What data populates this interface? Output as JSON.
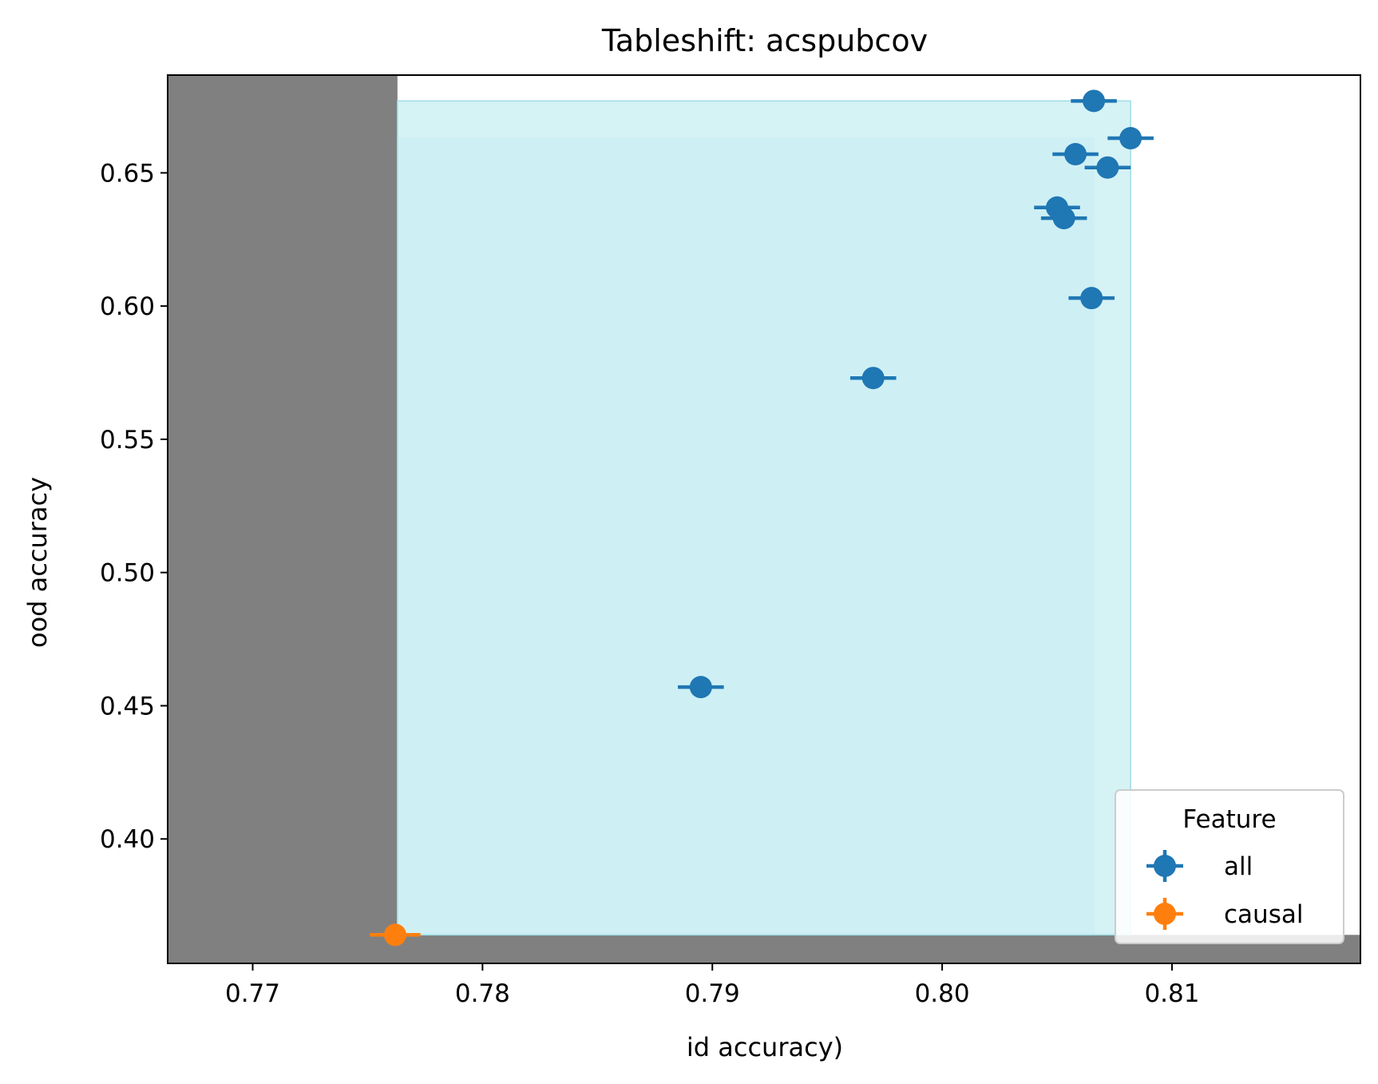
{
  "chart_data": {
    "type": "scatter",
    "title": "Tableshift: acspubcov",
    "xlabel": "id accuracy)",
    "ylabel": "ood accuracy",
    "xlim": [
      0.7663,
      0.8182
    ],
    "ylim": [
      0.3533,
      0.6867
    ],
    "x_ticks": [
      0.77,
      0.78,
      0.79,
      0.8,
      0.81
    ],
    "x_tick_labels": [
      "0.77",
      "0.78",
      "0.79",
      "0.80",
      "0.81"
    ],
    "y_ticks": [
      0.4,
      0.45,
      0.5,
      0.55,
      0.6,
      0.65
    ],
    "y_tick_labels": [
      "0.40",
      "0.45",
      "0.50",
      "0.55",
      "0.60",
      "0.65"
    ],
    "grid": false,
    "shaded_regions": [
      {
        "name": "below-causal",
        "x": [
          0.7663,
          0.7763
        ],
        "y": [
          0.3533,
          0.6867
        ],
        "color": "#808080"
      },
      {
        "name": "below-causal-ood",
        "x": [
          0.7663,
          0.8182
        ],
        "y": [
          0.3533,
          0.364
        ],
        "color": "#808080"
      },
      {
        "name": "dominance-region-1",
        "x": [
          0.7763,
          0.8066
        ],
        "y": [
          0.364,
          0.663
        ],
        "color": "#b0e8ee"
      },
      {
        "name": "dominance-region-2",
        "x": [
          0.7763,
          0.8082
        ],
        "y": [
          0.364,
          0.677
        ],
        "color": "#d0f1f4"
      }
    ],
    "legend": {
      "title": "Feature",
      "position": "lower-right",
      "entries": [
        {
          "label": "all",
          "color": "#1f77b4"
        },
        {
          "label": "causal",
          "color": "#ff7f0e"
        }
      ]
    },
    "series": [
      {
        "name": "all",
        "color": "#1f77b4",
        "points": [
          {
            "x": 0.8066,
            "y": 0.677,
            "xerr": 0.001
          },
          {
            "x": 0.8082,
            "y": 0.663,
            "xerr": 0.001
          },
          {
            "x": 0.8058,
            "y": 0.657,
            "xerr": 0.001
          },
          {
            "x": 0.8072,
            "y": 0.652,
            "xerr": 0.001
          },
          {
            "x": 0.805,
            "y": 0.637,
            "xerr": 0.001
          },
          {
            "x": 0.8053,
            "y": 0.633,
            "xerr": 0.001
          },
          {
            "x": 0.8065,
            "y": 0.603,
            "xerr": 0.001
          },
          {
            "x": 0.797,
            "y": 0.573,
            "xerr": 0.001
          },
          {
            "x": 0.7895,
            "y": 0.457,
            "xerr": 0.001
          }
        ]
      },
      {
        "name": "causal",
        "color": "#ff7f0e",
        "points": [
          {
            "x": 0.7762,
            "y": 0.364,
            "xerr": 0.0011
          }
        ]
      }
    ]
  }
}
